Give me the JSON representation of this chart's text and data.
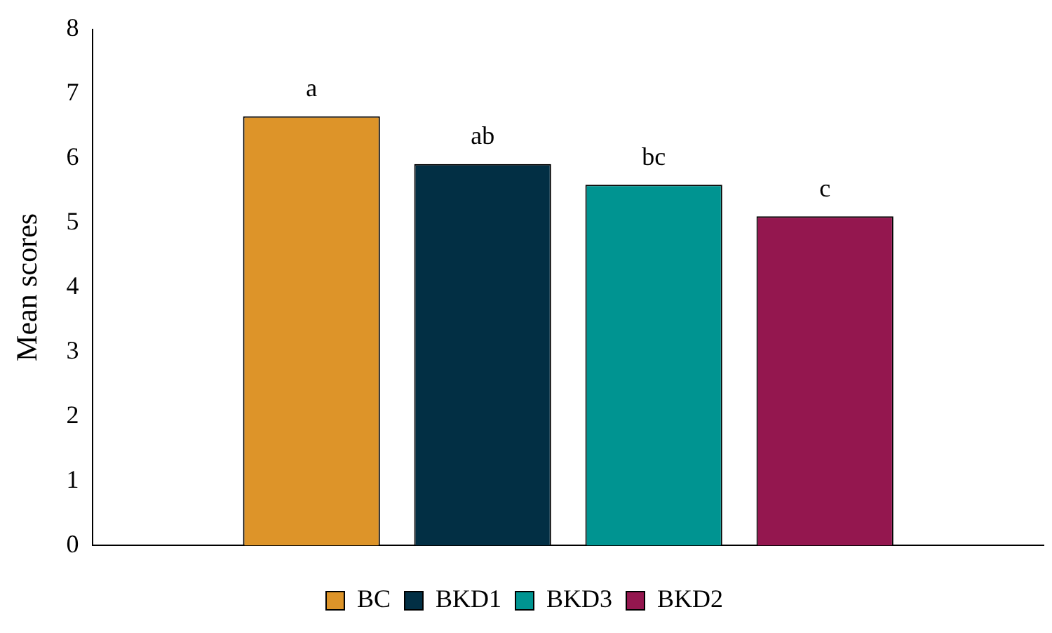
{
  "chart_data": {
    "type": "bar",
    "ylabel": "Mean scores",
    "categories": [
      null
    ],
    "series": [
      {
        "name": "BC",
        "color": "#dd9429",
        "values": [
          6.65
        ],
        "value_labels": [
          "a"
        ]
      },
      {
        "name": "BKD1",
        "color": "#022f44",
        "values": [
          5.91
        ],
        "value_labels": [
          "ab"
        ]
      },
      {
        "name": "BKD3",
        "color": "#009491",
        "values": [
          5.59
        ],
        "value_labels": [
          "bc"
        ]
      },
      {
        "name": "BKD2",
        "color": "#94174f",
        "values": [
          5.1
        ],
        "value_labels": [
          "c"
        ]
      }
    ],
    "ylim": [
      0,
      8
    ],
    "yticks": [
      0,
      1,
      2,
      3,
      4,
      5,
      6,
      7,
      8
    ],
    "grid": false,
    "legend": "bottom"
  }
}
